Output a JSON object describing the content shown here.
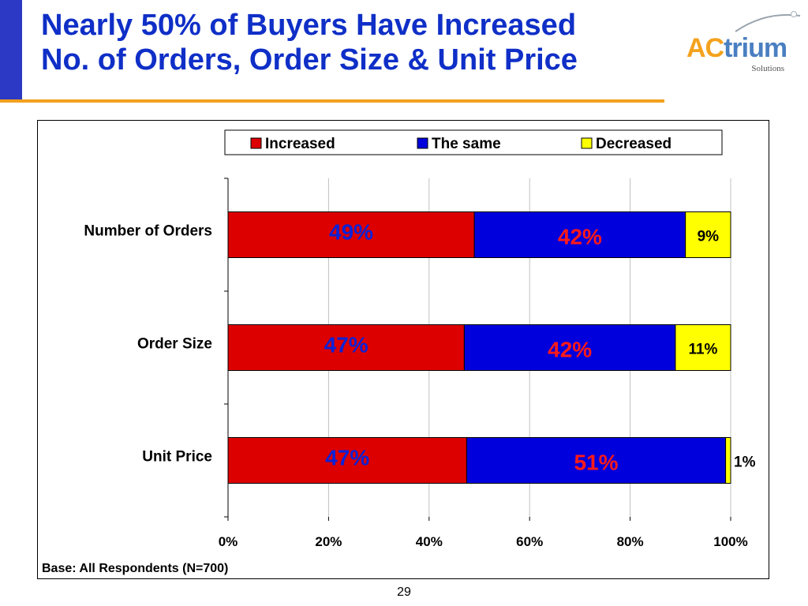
{
  "slide": {
    "title_lines": [
      "Nearly 50% of Buyers Have Increased",
      "No. of Orders, Order Size & Unit Price"
    ],
    "page_number": "29",
    "accent_color": "#f2a11f",
    "title_color": "#0f2fc7",
    "left_bar_color": "#2b39c4"
  },
  "logo": {
    "text_ac": "AC",
    "text_rest": "trium",
    "subtitle": "Solutions",
    "color_ac": "#f4a21d",
    "color_rest": "#4a7fc1"
  },
  "chart_data": {
    "type": "bar",
    "orientation": "horizontal",
    "stacked": "percent",
    "categories": [
      "Number of Orders",
      "Order Size",
      "Unit Price"
    ],
    "series": [
      {
        "name": "Increased",
        "color": "#dd0000",
        "label_color": "#0b22d8",
        "values": [
          49,
          47,
          47
        ],
        "labels": [
          "49%",
          "47%",
          "47%"
        ]
      },
      {
        "name": "The same",
        "color": "#0000dd",
        "label_color": "#ff1a1a",
        "values": [
          42,
          42,
          51
        ],
        "labels": [
          "42%",
          "42%",
          "51%"
        ]
      },
      {
        "name": "Decreased",
        "color": "#ffff00",
        "label_color": "#000000",
        "values": [
          9,
          11,
          1
        ],
        "labels": [
          "9%",
          "11%",
          "1%"
        ]
      }
    ],
    "xlim": [
      0,
      100
    ],
    "xticks": [
      "0%",
      "20%",
      "40%",
      "60%",
      "80%",
      "100%"
    ],
    "grid": true,
    "legend": "top",
    "note": "Base: All Respondents (N=700)"
  }
}
